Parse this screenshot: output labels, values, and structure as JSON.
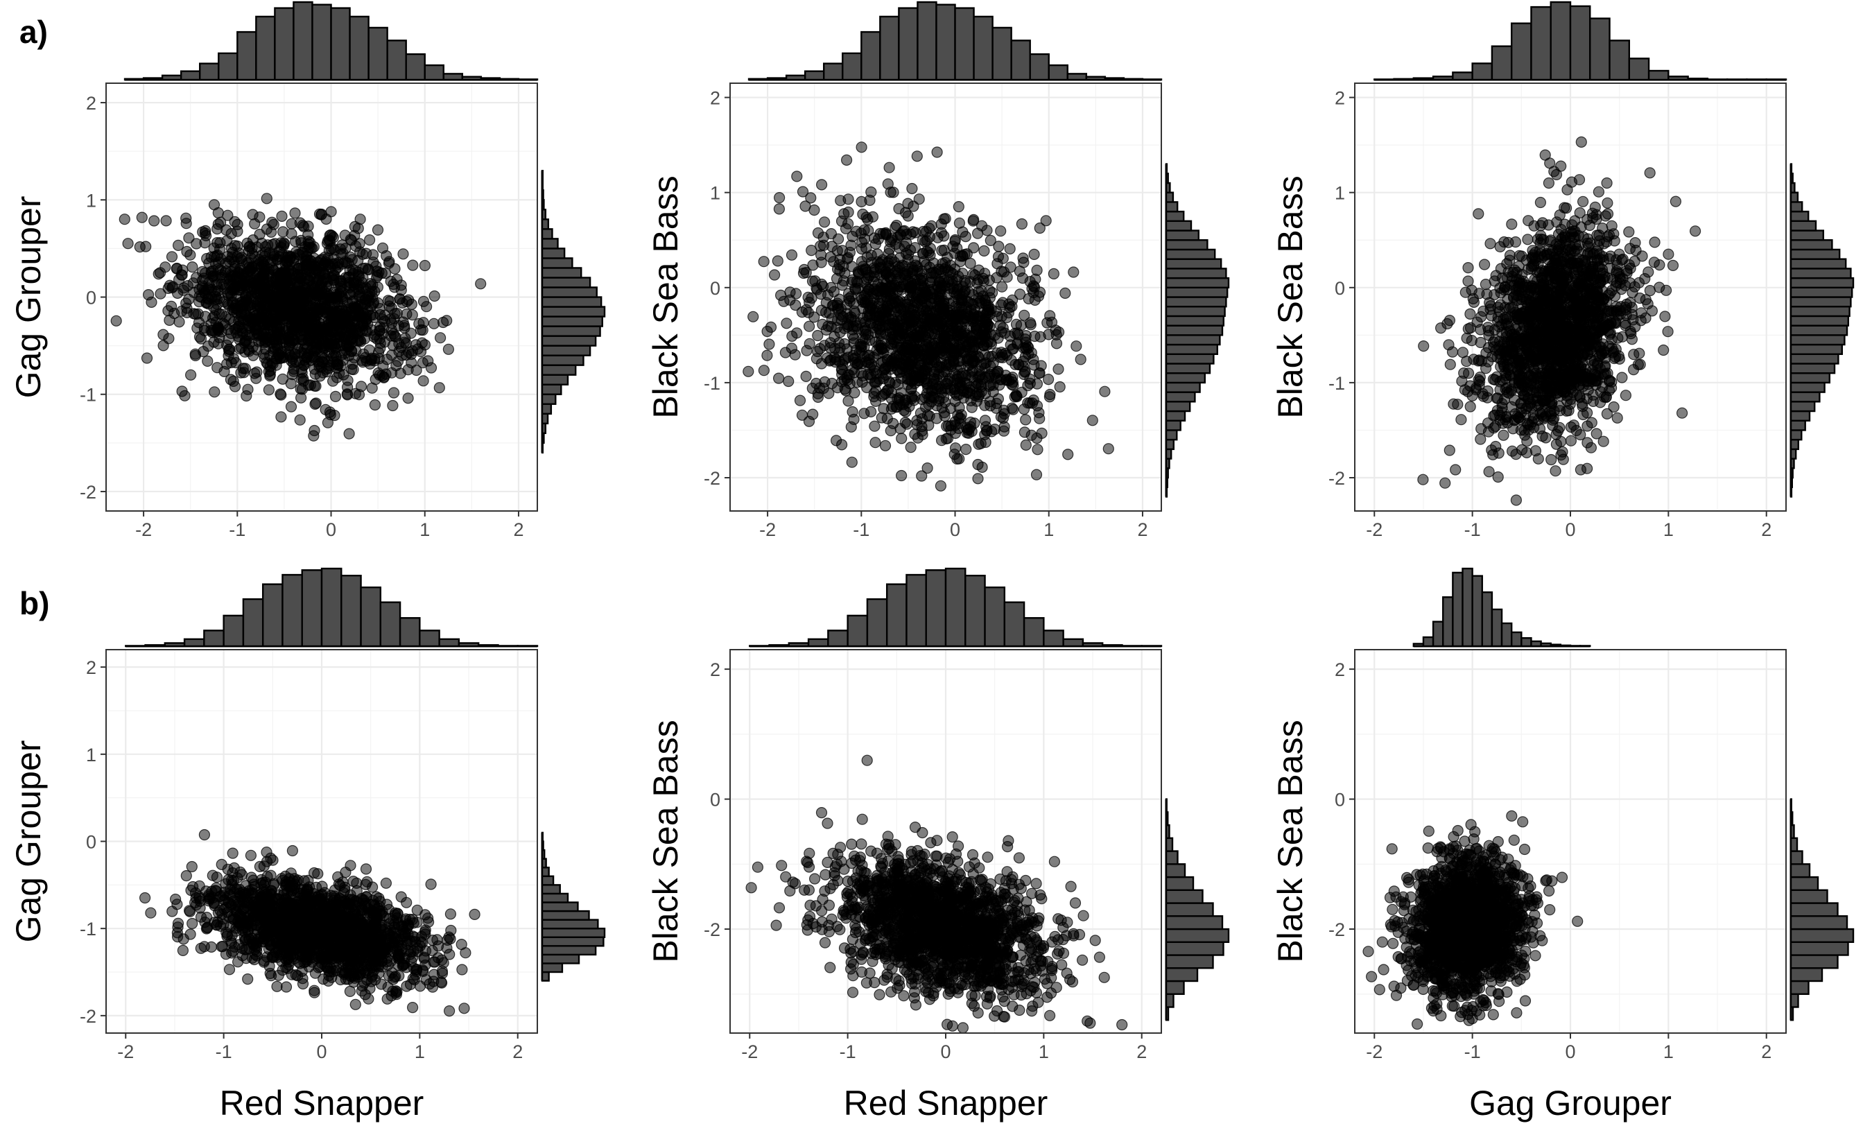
{
  "row_labels": [
    "a)",
    "b)"
  ],
  "chart_data": [
    {
      "type": "scatter",
      "row": "a)",
      "col": 0,
      "xlabel": "",
      "ylabel": "Gag Grouper",
      "xlim": [
        -2.4,
        2.2
      ],
      "ylim": [
        -2.2,
        2.2
      ],
      "xticks": [
        -2,
        -1,
        0,
        1,
        2
      ],
      "xtick_labels": [
        "-2",
        "-1",
        "0",
        "1",
        "2"
      ],
      "yticks": [
        -2,
        -1,
        0,
        1,
        2
      ],
      "ytick_labels": [
        "-2",
        "-1",
        "0",
        "1",
        "2"
      ],
      "point_cloud": {
        "n": 1600,
        "x_mean": -0.35,
        "x_sd": 0.62,
        "y_mean": -0.1,
        "y_sd": 0.4,
        "correlation": -0.25
      },
      "x_histogram": {
        "bins": [
          -2.2,
          -2.0,
          -1.8,
          -1.6,
          -1.4,
          -1.2,
          -1.0,
          -0.8,
          -0.6,
          -0.4,
          -0.2,
          0.0,
          0.2,
          0.4,
          0.6,
          0.8,
          1.0,
          1.2,
          1.4,
          1.6,
          1.8,
          2.0
        ],
        "counts": [
          2,
          4,
          10,
          20,
          38,
          62,
          112,
          148,
          168,
          182,
          176,
          168,
          148,
          122,
          92,
          60,
          34,
          14,
          7,
          4,
          2,
          1
        ]
      },
      "y_histogram": {
        "bins": [
          -1.6,
          -1.5,
          -1.4,
          -1.3,
          -1.2,
          -1.1,
          -1.0,
          -0.9,
          -0.8,
          -0.7,
          -0.6,
          -0.5,
          -0.4,
          -0.3,
          -0.2,
          -0.1,
          0.0,
          0.1,
          0.2,
          0.3,
          0.4,
          0.5,
          0.6,
          0.7,
          0.8,
          0.9,
          1.0,
          1.1,
          1.2
        ],
        "counts": [
          1,
          3,
          6,
          10,
          16,
          24,
          34,
          46,
          60,
          74,
          86,
          96,
          104,
          108,
          112,
          106,
          98,
          86,
          70,
          54,
          40,
          28,
          18,
          11,
          6,
          3,
          2,
          1,
          1
        ]
      }
    },
    {
      "type": "scatter",
      "row": "a)",
      "col": 1,
      "xlabel": "",
      "ylabel": "Black Sea Bass",
      "xlim": [
        -2.4,
        2.2
      ],
      "ylim": [
        -2.35,
        2.15
      ],
      "xticks": [
        -2,
        -1,
        0,
        1,
        2
      ],
      "xtick_labels": [
        "-2",
        "-1",
        "0",
        "1",
        "2"
      ],
      "yticks": [
        -2,
        -1,
        0,
        1,
        2
      ],
      "ytick_labels": [
        "-2",
        "-1",
        "0",
        "1",
        "2"
      ],
      "point_cloud": {
        "n": 1600,
        "x_mean": -0.35,
        "x_sd": 0.62,
        "y_mean": -0.45,
        "y_sd": 0.58,
        "correlation": -0.25
      },
      "x_histogram": {
        "bins": [
          -2.2,
          -2.0,
          -1.8,
          -1.6,
          -1.4,
          -1.2,
          -1.0,
          -0.8,
          -0.6,
          -0.4,
          -0.2,
          0.0,
          0.2,
          0.4,
          0.6,
          0.8,
          1.0,
          1.2,
          1.4,
          1.6,
          1.8,
          2.0
        ],
        "counts": [
          2,
          4,
          10,
          20,
          38,
          62,
          112,
          148,
          168,
          182,
          176,
          168,
          148,
          122,
          92,
          60,
          34,
          14,
          7,
          4,
          2,
          1
        ]
      },
      "y_histogram": {
        "bins": [
          -2.2,
          -2.1,
          -2.0,
          -1.9,
          -1.8,
          -1.7,
          -1.6,
          -1.5,
          -1.4,
          -1.3,
          -1.2,
          -1.1,
          -1.0,
          -0.9,
          -0.8,
          -0.7,
          -0.6,
          -0.5,
          -0.4,
          -0.3,
          -0.2,
          -0.1,
          0.0,
          0.1,
          0.2,
          0.3,
          0.4,
          0.5,
          0.6,
          0.7,
          0.8,
          0.9,
          1.0,
          1.1,
          1.2
        ],
        "counts": [
          1,
          2,
          3,
          5,
          8,
          12,
          17,
          23,
          30,
          38,
          46,
          54,
          62,
          70,
          76,
          82,
          86,
          90,
          92,
          94,
          96,
          98,
          100,
          96,
          88,
          78,
          66,
          52,
          40,
          28,
          18,
          11,
          6,
          3,
          1
        ]
      }
    },
    {
      "type": "scatter",
      "row": "a)",
      "col": 2,
      "xlabel": "",
      "ylabel": "Black Sea Bass",
      "xlim": [
        -2.2,
        2.2
      ],
      "ylim": [
        -2.35,
        2.15
      ],
      "xticks": [
        -2,
        -1,
        0,
        1,
        2
      ],
      "xtick_labels": [
        "-2",
        "-1",
        "0",
        "1",
        "2"
      ],
      "yticks": [
        -2,
        -1,
        0,
        1,
        2
      ],
      "ytick_labels": [
        "-2",
        "-1",
        "0",
        "1",
        "2"
      ],
      "point_cloud": {
        "n": 1600,
        "x_mean": -0.15,
        "x_sd": 0.4,
        "y_mean": -0.45,
        "y_sd": 0.58,
        "correlation": 0.25
      },
      "x_histogram": {
        "bins": [
          -2.0,
          -1.8,
          -1.6,
          -1.4,
          -1.2,
          -1.0,
          -0.8,
          -0.6,
          -0.4,
          -0.2,
          0.0,
          0.2,
          0.4,
          0.6,
          0.8,
          1.0,
          1.2,
          1.4,
          1.6,
          1.8,
          2.0
        ],
        "counts": [
          1,
          2,
          4,
          8,
          18,
          40,
          82,
          138,
          178,
          190,
          180,
          150,
          96,
          52,
          22,
          8,
          3,
          1,
          1,
          1,
          1
        ]
      },
      "y_histogram": {
        "bins": [
          -2.2,
          -2.1,
          -2.0,
          -1.9,
          -1.8,
          -1.7,
          -1.6,
          -1.5,
          -1.4,
          -1.3,
          -1.2,
          -1.1,
          -1.0,
          -0.9,
          -0.8,
          -0.7,
          -0.6,
          -0.5,
          -0.4,
          -0.3,
          -0.2,
          -0.1,
          0.0,
          0.1,
          0.2,
          0.3,
          0.4,
          0.5,
          0.6,
          0.7,
          0.8,
          0.9,
          1.0,
          1.1,
          1.2
        ],
        "counts": [
          1,
          2,
          3,
          5,
          8,
          12,
          17,
          23,
          30,
          38,
          46,
          54,
          62,
          70,
          76,
          82,
          86,
          90,
          92,
          94,
          96,
          98,
          100,
          96,
          88,
          78,
          66,
          52,
          40,
          28,
          18,
          11,
          6,
          3,
          1
        ]
      }
    },
    {
      "type": "scatter",
      "row": "b)",
      "col": 0,
      "xlabel": "Red Snapper",
      "ylabel": "Gag Grouper",
      "xlim": [
        -2.2,
        2.2
      ],
      "ylim": [
        -2.2,
        2.2
      ],
      "xticks": [
        -2,
        -1,
        0,
        1,
        2
      ],
      "xtick_labels": [
        "-2",
        "-1",
        "0",
        "1",
        "2"
      ],
      "yticks": [
        -2,
        -1,
        0,
        1,
        2
      ],
      "ytick_labels": [
        "-2",
        "-1",
        "0",
        "1",
        "2"
      ],
      "point_cloud": {
        "n": 1600,
        "x_mean": -0.05,
        "x_sd": 0.55,
        "y_mean": -1.0,
        "y_sd": 0.3,
        "correlation": -0.4
      },
      "x_histogram": {
        "bins": [
          -2.0,
          -1.8,
          -1.6,
          -1.4,
          -1.2,
          -1.0,
          -0.8,
          -0.6,
          -0.4,
          -0.2,
          0.0,
          0.2,
          0.4,
          0.6,
          0.8,
          1.0,
          1.2,
          1.4,
          1.6,
          1.8,
          2.0
        ],
        "counts": [
          1,
          3,
          8,
          18,
          40,
          78,
          120,
          158,
          182,
          194,
          198,
          180,
          150,
          112,
          72,
          40,
          18,
          8,
          3,
          1,
          1
        ]
      },
      "y_histogram": {
        "bins": [
          -1.6,
          -1.5,
          -1.4,
          -1.3,
          -1.2,
          -1.1,
          -1.0,
          -0.9,
          -0.8,
          -0.7,
          -0.6,
          -0.5,
          -0.4,
          -0.3,
          -0.2,
          -0.1,
          0.0
        ],
        "counts": [
          12,
          36,
          66,
          96,
          110,
          112,
          100,
          84,
          64,
          46,
          32,
          20,
          12,
          7,
          4,
          2,
          1
        ]
      }
    },
    {
      "type": "scatter",
      "row": "b)",
      "col": 1,
      "xlabel": "Red Snapper",
      "ylabel": "Black Sea Bass",
      "xlim": [
        -2.2,
        2.2
      ],
      "ylim": [
        -3.6,
        2.3
      ],
      "xticks": [
        -2,
        -1,
        0,
        1,
        2
      ],
      "xtick_labels": [
        "-2",
        "-1",
        "0",
        "1",
        "2"
      ],
      "yticks": [
        -2,
        0,
        2
      ],
      "ytick_labels": [
        "-2",
        "0",
        "2"
      ],
      "point_cloud": {
        "n": 1600,
        "x_mean": -0.05,
        "x_sd": 0.55,
        "y_mean": -1.95,
        "y_sd": 0.55,
        "correlation": -0.4
      },
      "x_histogram": {
        "bins": [
          -2.0,
          -1.8,
          -1.6,
          -1.4,
          -1.2,
          -1.0,
          -0.8,
          -0.6,
          -0.4,
          -0.2,
          0.0,
          0.2,
          0.4,
          0.6,
          0.8,
          1.0,
          1.2,
          1.4,
          1.6,
          1.8,
          2.0
        ],
        "counts": [
          1,
          3,
          8,
          18,
          40,
          78,
          120,
          158,
          182,
          194,
          198,
          180,
          150,
          112,
          72,
          40,
          18,
          8,
          3,
          1,
          1
        ]
      },
      "y_histogram": {
        "bins": [
          -3.4,
          -3.2,
          -3.0,
          -2.8,
          -2.6,
          -2.4,
          -2.2,
          -2.0,
          -1.8,
          -1.6,
          -1.4,
          -1.2,
          -1.0,
          -0.8,
          -0.6,
          -0.4,
          -0.2
        ],
        "counts": [
          4,
          14,
          34,
          60,
          90,
          110,
          120,
          108,
          90,
          70,
          52,
          36,
          22,
          12,
          6,
          3,
          1
        ]
      }
    },
    {
      "type": "scatter",
      "row": "b)",
      "col": 2,
      "xlabel": "Gag Grouper",
      "ylabel": "Black Sea Bass",
      "xlim": [
        -2.2,
        2.2
      ],
      "ylim": [
        -3.6,
        2.3
      ],
      "xticks": [
        -2,
        -1,
        0,
        1,
        2
      ],
      "xtick_labels": [
        "-2",
        "-1",
        "0",
        "1",
        "2"
      ],
      "yticks": [
        -2,
        0,
        2
      ],
      "ytick_labels": [
        "-2",
        "0",
        "2"
      ],
      "point_cloud": {
        "n": 1600,
        "x_mean": -1.05,
        "x_sd": 0.3,
        "y_mean": -1.95,
        "y_sd": 0.55,
        "correlation": 0.15
      },
      "x_histogram": {
        "bins": [
          -1.6,
          -1.5,
          -1.4,
          -1.3,
          -1.2,
          -1.1,
          -1.0,
          -0.9,
          -0.8,
          -0.7,
          -0.6,
          -0.5,
          -0.4,
          -0.3,
          -0.2,
          -0.1,
          0.0,
          0.1
        ],
        "counts": [
          6,
          22,
          60,
          120,
          180,
          190,
          172,
          132,
          90,
          56,
          34,
          20,
          12,
          7,
          4,
          2,
          1,
          1
        ]
      },
      "y_histogram": {
        "bins": [
          -3.4,
          -3.2,
          -3.0,
          -2.8,
          -2.6,
          -2.4,
          -2.2,
          -2.0,
          -1.8,
          -1.6,
          -1.4,
          -1.2,
          -1.0,
          -0.8,
          -0.6,
          -0.4,
          -0.2
        ],
        "counts": [
          4,
          14,
          34,
          60,
          90,
          110,
          120,
          108,
          90,
          70,
          52,
          36,
          22,
          12,
          6,
          3,
          1
        ]
      }
    }
  ]
}
